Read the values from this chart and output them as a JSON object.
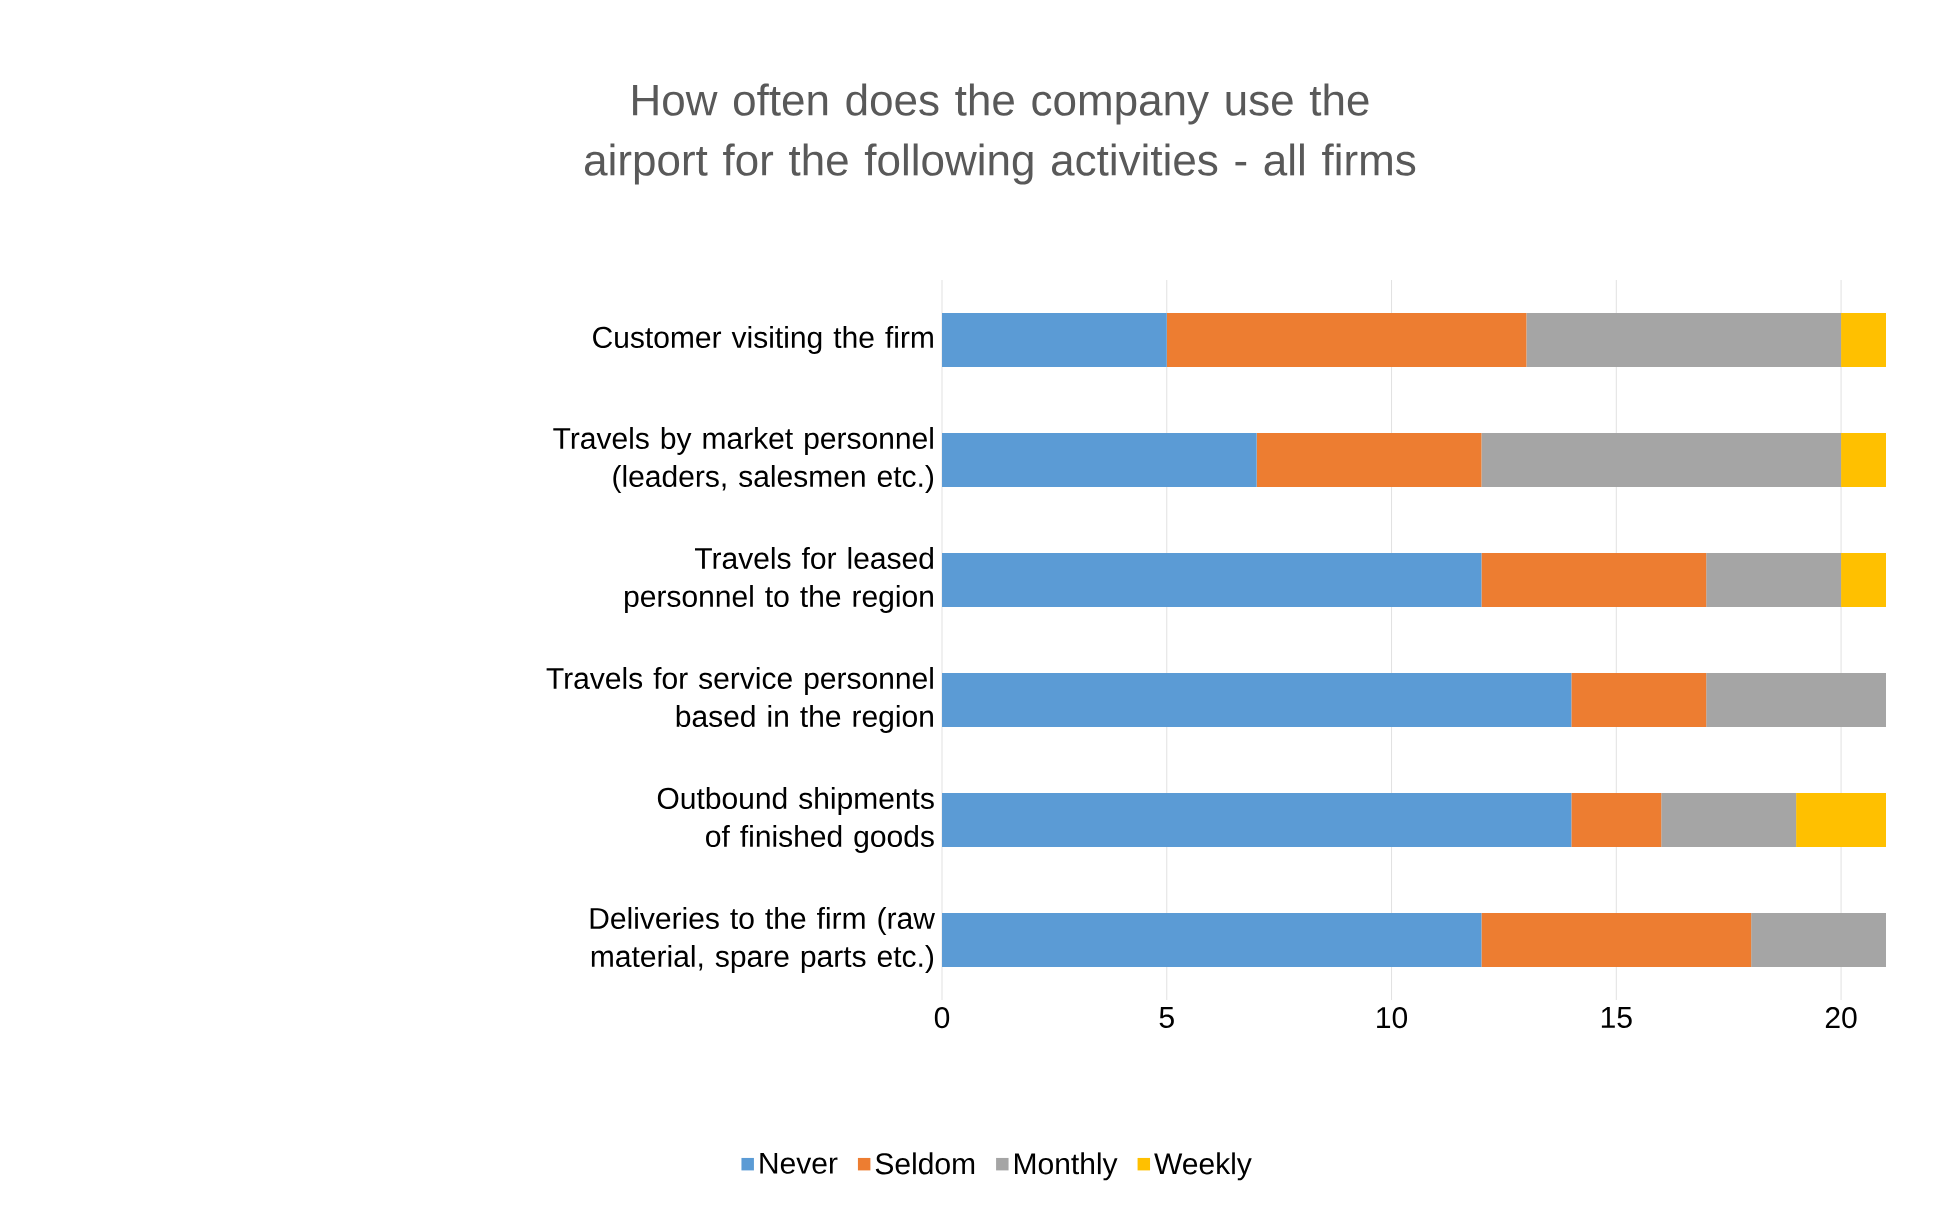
{
  "chart_data": {
    "type": "bar",
    "orientation": "horizontal",
    "stacked": true,
    "title": "How often does the company use the airport for the following activities - all firms",
    "categories": [
      "Customer visiting the firm",
      "Travels by market personnel (leaders, salesmen etc.)",
      "Travels for leased personnel to the region",
      "Travels for service personnel based in the region",
      "Outbound shipments of finished goods",
      "Deliveries to the firm (raw material, spare parts etc.)"
    ],
    "series": [
      {
        "name": "Never",
        "color": "#5b9bd5",
        "values": [
          5,
          7,
          12,
          14,
          14,
          12
        ]
      },
      {
        "name": "Seldom",
        "color": "#ed7d31",
        "values": [
          8,
          5,
          5,
          3,
          2,
          6
        ]
      },
      {
        "name": "Monthly",
        "color": "#a5a5a5",
        "values": [
          7,
          8,
          3,
          4,
          3,
          3
        ]
      },
      {
        "name": "Weekly",
        "color": "#ffc000",
        "values": [
          1,
          1,
          1,
          0,
          2,
          0
        ]
      }
    ],
    "xlim": [
      0,
      21
    ],
    "xticks": [
      0,
      5,
      10,
      15,
      20
    ],
    "grid": "x",
    "legend": "bottom"
  }
}
